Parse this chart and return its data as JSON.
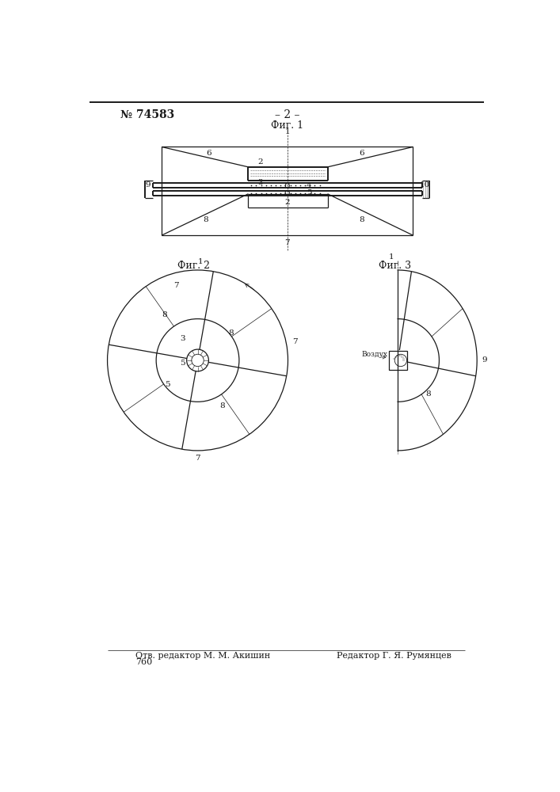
{
  "title_num": "№ 74583",
  "title_page": "– 2 –",
  "fig1_label": "Фиг. 1",
  "fig2_label": "Фиг. 2",
  "fig3_label": "Фиг. 3",
  "footer_left": "Отв. редактор М. М. Акишин",
  "footer_right": "Редактор Г. Я. Румянцев",
  "footer_num": "760",
  "air_label": "Воздух",
  "bg_color": "#ffffff",
  "line_color": "#1a1a1a",
  "thin_line": 0.5,
  "medium_line": 0.9,
  "thick_line": 1.4
}
